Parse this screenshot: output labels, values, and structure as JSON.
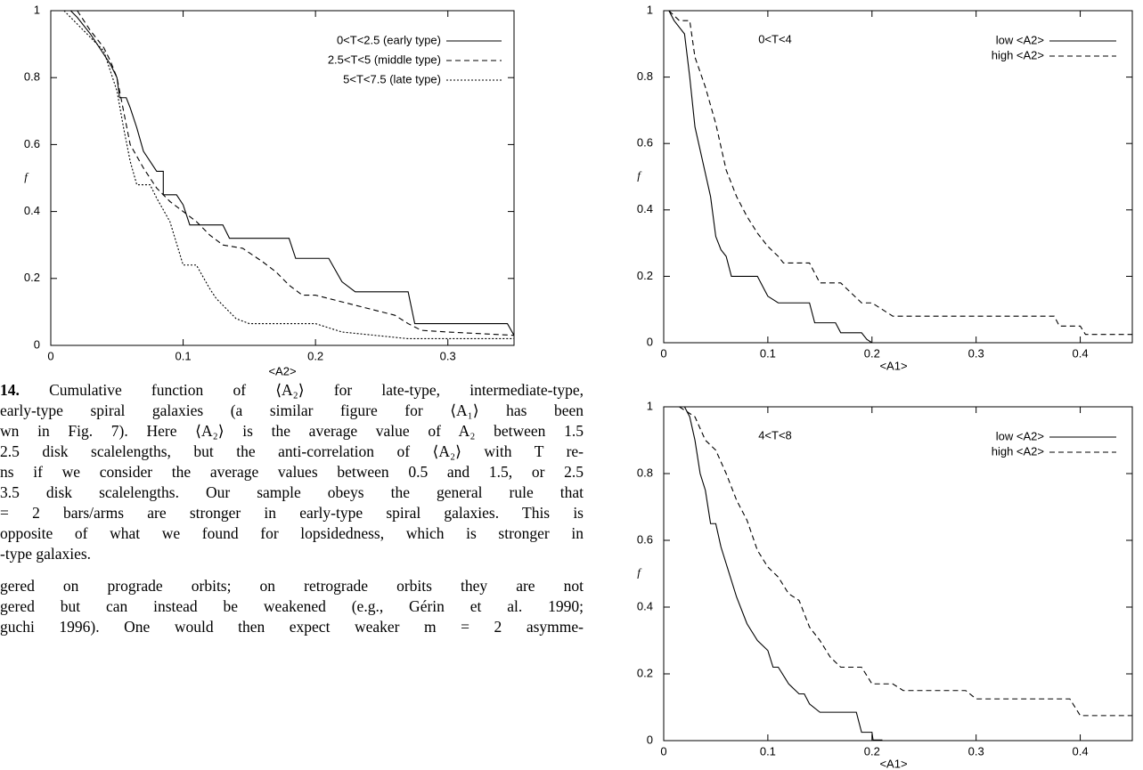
{
  "chart_data": [
    {
      "type": "line",
      "xlabel": "<A2>",
      "ylabel": "f",
      "xlim": [
        0,
        0.35
      ],
      "ylim": [
        0,
        1
      ],
      "xticks": [
        0,
        0.1,
        0.2,
        0.3
      ],
      "yticks": [
        0,
        0.2,
        0.4,
        0.6,
        0.8,
        1
      ],
      "legend": "upper right",
      "series": [
        {
          "name": "0<T<2.5 (early type)",
          "color": "#000",
          "style": "solid",
          "x": [
            0.015,
            0.02,
            0.03,
            0.04,
            0.045,
            0.05,
            0.052,
            0.057,
            0.06,
            0.065,
            0.07,
            0.08,
            0.085,
            0.085,
            0.095,
            0.1,
            0.105,
            0.13,
            0.135,
            0.18,
            0.185,
            0.21,
            0.22,
            0.23,
            0.27,
            0.275,
            0.345,
            0.35
          ],
          "values": [
            1,
            0.98,
            0.93,
            0.87,
            0.84,
            0.8,
            0.74,
            0.74,
            0.71,
            0.65,
            0.58,
            0.52,
            0.52,
            0.45,
            0.45,
            0.42,
            0.36,
            0.36,
            0.32,
            0.32,
            0.26,
            0.26,
            0.19,
            0.16,
            0.16,
            0.065,
            0.065,
            0.03
          ]
        },
        {
          "name": "2.5<T<5 (middle type)",
          "color": "#000",
          "style": "dashed",
          "x": [
            0.02,
            0.03,
            0.04,
            0.045,
            0.05,
            0.055,
            0.06,
            0.07,
            0.08,
            0.09,
            0.1,
            0.11,
            0.12,
            0.13,
            0.145,
            0.16,
            0.17,
            0.18,
            0.19,
            0.2,
            0.22,
            0.24,
            0.26,
            0.27,
            0.28,
            0.3,
            0.35
          ],
          "values": [
            1,
            0.94,
            0.89,
            0.85,
            0.8,
            0.7,
            0.6,
            0.53,
            0.47,
            0.43,
            0.4,
            0.37,
            0.33,
            0.3,
            0.29,
            0.25,
            0.22,
            0.18,
            0.15,
            0.15,
            0.13,
            0.11,
            0.09,
            0.065,
            0.045,
            0.04,
            0.03
          ]
        },
        {
          "name": "5<T<7.5 (late type)",
          "color": "#000",
          "style": "dotted",
          "x": [
            0.01,
            0.02,
            0.03,
            0.04,
            0.045,
            0.05,
            0.055,
            0.06,
            0.065,
            0.075,
            0.08,
            0.09,
            0.1,
            0.11,
            0.12,
            0.125,
            0.13,
            0.14,
            0.15,
            0.2,
            0.22,
            0.27,
            0.35
          ],
          "values": [
            1,
            0.96,
            0.92,
            0.88,
            0.82,
            0.76,
            0.65,
            0.55,
            0.48,
            0.48,
            0.44,
            0.37,
            0.24,
            0.24,
            0.17,
            0.14,
            0.12,
            0.08,
            0.065,
            0.065,
            0.04,
            0.02,
            0.02
          ]
        }
      ]
    },
    {
      "type": "line",
      "title": "0<T<4",
      "xlabel": "<A1>",
      "ylabel": "f",
      "xlim": [
        0,
        0.45
      ],
      "ylim": [
        0,
        1
      ],
      "xticks": [
        0,
        0.1,
        0.2,
        0.3,
        0.4
      ],
      "yticks": [
        0,
        0.2,
        0.4,
        0.6,
        0.8,
        1
      ],
      "legend": "upper right",
      "series": [
        {
          "name": "low <A2>",
          "color": "#000",
          "style": "solid",
          "x": [
            0.005,
            0.01,
            0.02,
            0.025,
            0.03,
            0.04,
            0.045,
            0.05,
            0.055,
            0.06,
            0.065,
            0.09,
            0.095,
            0.1,
            0.11,
            0.14,
            0.145,
            0.165,
            0.17,
            0.19,
            0.195,
            0.2
          ],
          "values": [
            1,
            0.97,
            0.93,
            0.8,
            0.65,
            0.51,
            0.44,
            0.32,
            0.28,
            0.26,
            0.2,
            0.2,
            0.17,
            0.14,
            0.12,
            0.12,
            0.06,
            0.06,
            0.03,
            0.03,
            0.01,
            0
          ]
        },
        {
          "name": "high <A2>",
          "color": "#000",
          "style": "dashed",
          "x": [
            0.005,
            0.015,
            0.025,
            0.03,
            0.04,
            0.05,
            0.06,
            0.07,
            0.08,
            0.09,
            0.1,
            0.11,
            0.115,
            0.14,
            0.15,
            0.17,
            0.19,
            0.2,
            0.21,
            0.22,
            0.375,
            0.38,
            0.4,
            0.405,
            0.45
          ],
          "values": [
            1,
            0.97,
            0.97,
            0.86,
            0.77,
            0.66,
            0.52,
            0.44,
            0.38,
            0.33,
            0.29,
            0.26,
            0.24,
            0.24,
            0.18,
            0.18,
            0.12,
            0.12,
            0.1,
            0.08,
            0.08,
            0.05,
            0.05,
            0.025,
            0.025
          ]
        }
      ]
    },
    {
      "type": "line",
      "title": "4<T<8",
      "xlabel": "<A1>",
      "ylabel": "f",
      "xlim": [
        0,
        0.45
      ],
      "ylim": [
        0,
        1
      ],
      "xticks": [
        0,
        0.1,
        0.2,
        0.3,
        0.4
      ],
      "yticks": [
        0,
        0.2,
        0.4,
        0.6,
        0.8,
        1
      ],
      "legend": "upper right",
      "series": [
        {
          "name": "low <A2>",
          "color": "#000",
          "style": "solid",
          "x": [
            0.02,
            0.025,
            0.03,
            0.035,
            0.04,
            0.045,
            0.05,
            0.055,
            0.06,
            0.07,
            0.08,
            0.09,
            0.1,
            0.105,
            0.11,
            0.12,
            0.13,
            0.135,
            0.14,
            0.15,
            0.185,
            0.19,
            0.2,
            0.201,
            0.21
          ],
          "values": [
            1,
            0.97,
            0.9,
            0.8,
            0.75,
            0.65,
            0.65,
            0.58,
            0.53,
            0.43,
            0.35,
            0.3,
            0.27,
            0.22,
            0.22,
            0.17,
            0.14,
            0.14,
            0.11,
            0.085,
            0.085,
            0.025,
            0.025,
            0.002,
            0.002
          ]
        },
        {
          "name": "high <A2>",
          "color": "#000",
          "style": "dashed",
          "x": [
            0.015,
            0.025,
            0.03,
            0.04,
            0.05,
            0.06,
            0.07,
            0.08,
            0.09,
            0.1,
            0.11,
            0.12,
            0.13,
            0.14,
            0.15,
            0.16,
            0.17,
            0.19,
            0.2,
            0.22,
            0.23,
            0.29,
            0.3,
            0.39,
            0.4,
            0.45
          ],
          "values": [
            1,
            0.98,
            0.97,
            0.9,
            0.87,
            0.8,
            0.72,
            0.66,
            0.57,
            0.52,
            0.49,
            0.44,
            0.42,
            0.34,
            0.3,
            0.25,
            0.22,
            0.22,
            0.17,
            0.17,
            0.15,
            0.15,
            0.125,
            0.125,
            0.075,
            0.075
          ]
        }
      ]
    }
  ],
  "caption": {
    "label": "14.",
    "lines": [
      " Cumulative function of ⟨A₂⟩ for late-type, intermediate-type,",
      "early-type spiral galaxies (a similar figure for ⟨A₁⟩ has been",
      "wn in Fig. 7). Here ⟨A₂⟩ is the average value of A₂ between 1.5",
      "2.5 disk scalelengths, but the anti-correlation of ⟨A₂⟩ with T re-",
      "ns if we consider the average values between 0.5 and 1.5, or 2.5",
      "3.5 disk scalelengths. Our sample obeys the general rule that",
      "= 2 bars/arms are stronger in early-type spiral galaxies. This is",
      "opposite of what we found for lopsidedness, which is stronger in",
      "-type galaxies."
    ]
  },
  "body": {
    "lines": [
      "gered on prograde orbits; on retrograde orbits they are not",
      "gered but can instead be weakened (e.g., Gérin et al. 1990;",
      "guchi 1996). One would then expect weaker m = 2 asymme-"
    ]
  }
}
